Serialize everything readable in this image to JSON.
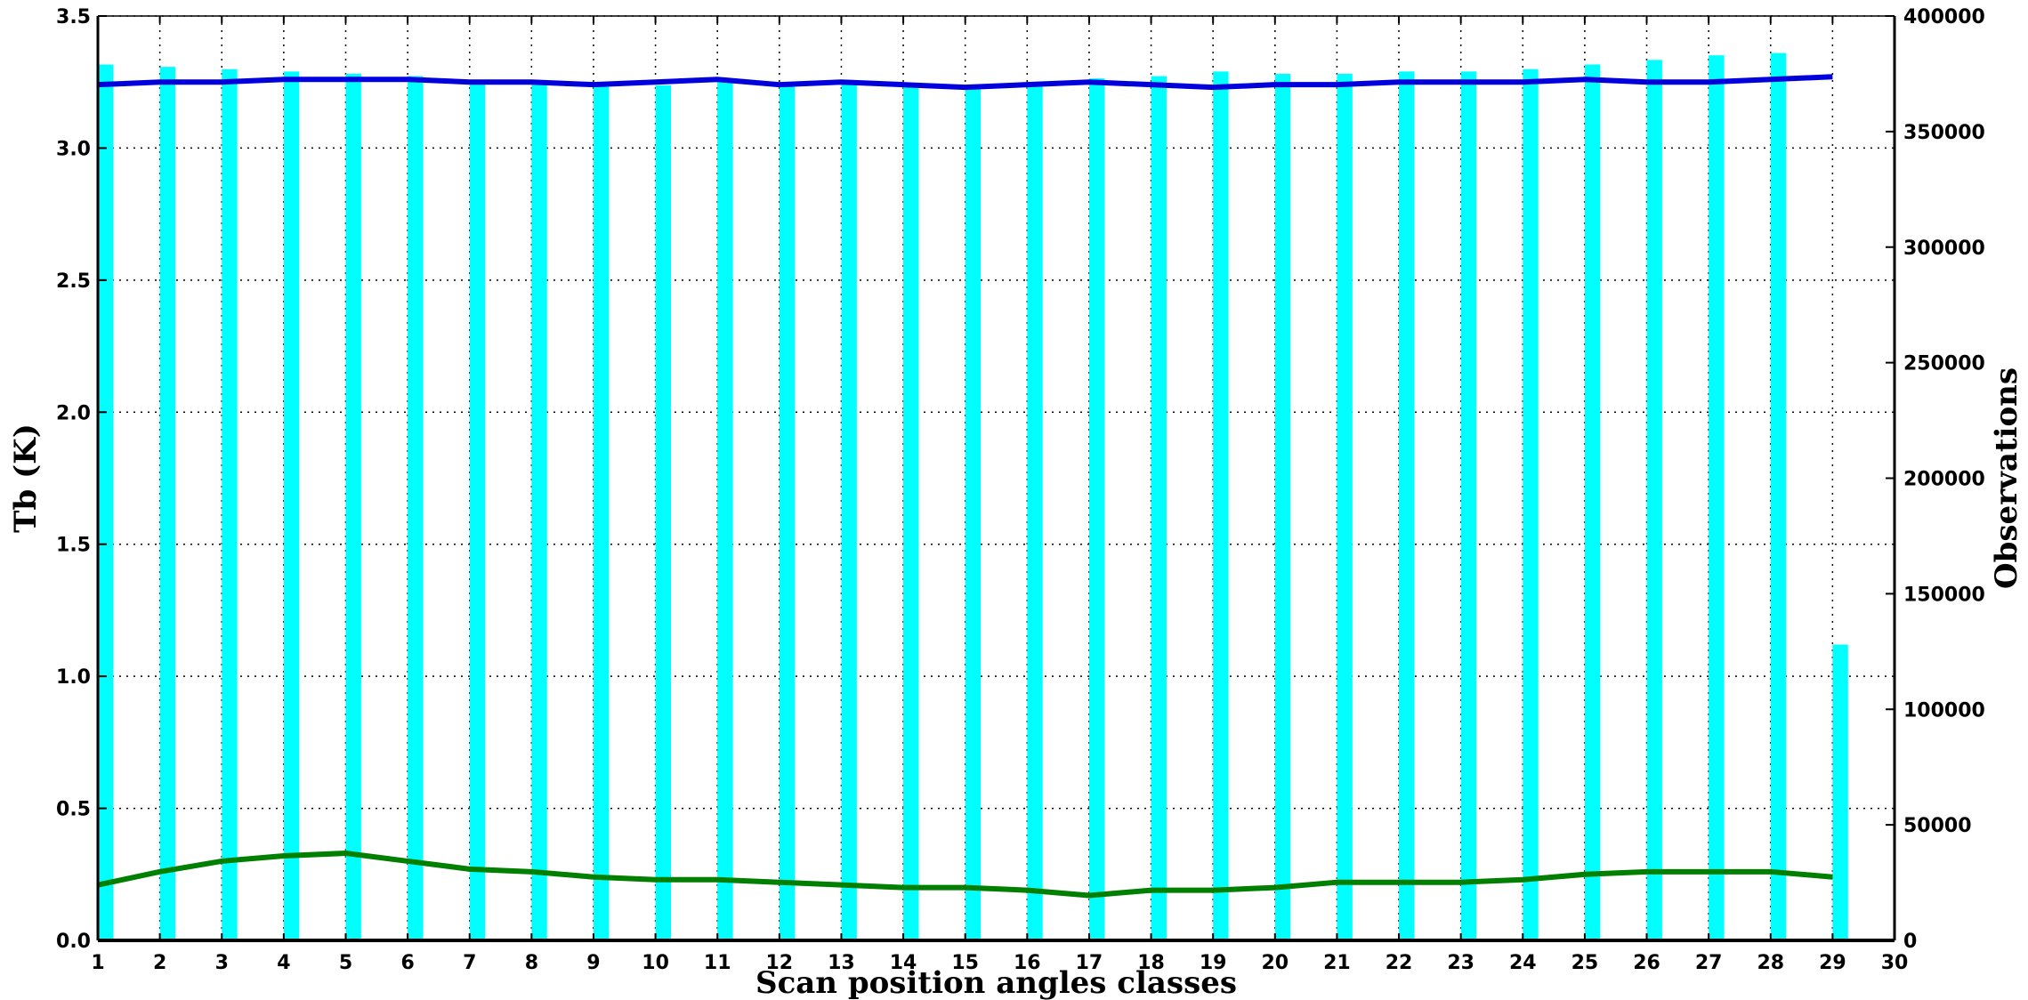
{
  "chart_data": {
    "type": "bar+line",
    "title": "",
    "xlabel": "Scan position angles classes",
    "ylabel": "Tb (K)",
    "y2label": "Observations",
    "xlim": [
      1,
      30
    ],
    "ylim": [
      0,
      3.5
    ],
    "y2lim": [
      0,
      400000
    ],
    "grid": true,
    "x_ticks": [
      "1",
      "2",
      "3",
      "4",
      "5",
      "6",
      "7",
      "8",
      "9",
      "10",
      "11",
      "12",
      "13",
      "14",
      "15",
      "16",
      "17",
      "18",
      "19",
      "20",
      "21",
      "22",
      "23",
      "24",
      "25",
      "26",
      "27",
      "28",
      "29",
      "30"
    ],
    "y_ticks": [
      "0.0",
      "0.5",
      "1.0",
      "1.5",
      "2.0",
      "2.5",
      "3.0",
      "3.5"
    ],
    "y2_ticks": [
      "0",
      "50000",
      "100000",
      "150000",
      "200000",
      "250000",
      "300000",
      "350000",
      "400000"
    ],
    "x": [
      1,
      2,
      3,
      4,
      5,
      6,
      7,
      8,
      9,
      10,
      11,
      12,
      13,
      14,
      15,
      16,
      17,
      18,
      19,
      20,
      21,
      22,
      23,
      24,
      25,
      26,
      27,
      28,
      29
    ],
    "bars": {
      "axis": "right",
      "color": "#00ffff",
      "values": [
        379000,
        378000,
        377000,
        376000,
        375000,
        374000,
        372000,
        371000,
        370000,
        370000,
        372000,
        370000,
        372000,
        371000,
        369000,
        371000,
        373000,
        374000,
        376000,
        375000,
        375000,
        376000,
        376000,
        377000,
        379000,
        381000,
        383000,
        384000,
        128000
      ]
    },
    "series": [
      {
        "axis": "left",
        "color": "#0000dd",
        "values": [
          3.24,
          3.25,
          3.25,
          3.26,
          3.26,
          3.26,
          3.25,
          3.25,
          3.24,
          3.25,
          3.26,
          3.24,
          3.25,
          3.24,
          3.23,
          3.24,
          3.25,
          3.24,
          3.23,
          3.24,
          3.24,
          3.25,
          3.25,
          3.25,
          3.26,
          3.25,
          3.25,
          3.26,
          3.27
        ]
      },
      {
        "axis": "left",
        "color": "#007f00",
        "values": [
          0.21,
          0.26,
          0.3,
          0.32,
          0.33,
          0.3,
          0.27,
          0.26,
          0.24,
          0.23,
          0.23,
          0.22,
          0.21,
          0.2,
          0.2,
          0.19,
          0.17,
          0.19,
          0.19,
          0.2,
          0.22,
          0.22,
          0.22,
          0.23,
          0.25,
          0.26,
          0.26,
          0.26,
          0.24
        ]
      }
    ]
  }
}
